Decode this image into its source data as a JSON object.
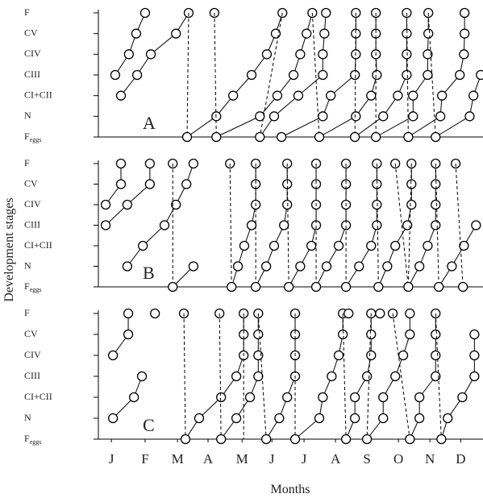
{
  "x_label": "Months",
  "y_label": "Development stages",
  "chart_data": [
    {
      "type": "line",
      "annotation": "A",
      "xlim": [
        0,
        12.1
      ],
      "ylim": [
        0,
        6
      ],
      "y_categories": [
        {
          "text": "F",
          "sub": "eggs"
        },
        "N",
        "CI+CII",
        "CIII",
        "CIV",
        "CV",
        "F"
      ],
      "series": [
        {
          "style": "solid",
          "x": [
            0.53,
            0.96,
            1.19,
            1.47
          ],
          "y": [
            3,
            4,
            5,
            6
          ]
        },
        {
          "style": "solid",
          "x": [
            0.71,
            1.22,
            1.65,
            2.44,
            2.84
          ],
          "y": [
            2,
            3,
            4,
            5,
            6
          ]
        },
        {
          "style": "dashed",
          "x": [
            2.84,
            2.79
          ],
          "y": [
            6,
            0
          ]
        },
        {
          "style": "solid",
          "x": [
            2.79,
            3.71,
            4.24,
            4.82,
            5.3,
            5.58,
            5.79
          ],
          "y": [
            0,
            1,
            2,
            3,
            4,
            5,
            6
          ]
        },
        {
          "style": "solid",
          "x": [
            3.65
          ],
          "y": [
            6
          ]
        },
        {
          "style": "dashed",
          "x": [
            3.65,
            3.71
          ],
          "y": [
            6,
            0
          ]
        },
        {
          "style": "solid",
          "x": [
            3.71,
            5.08,
            5.63,
            6.14,
            6.35,
            6.55,
            6.73
          ],
          "y": [
            0,
            1,
            2,
            3,
            4,
            5,
            6
          ]
        },
        {
          "style": "dashed",
          "x": [
            5.79,
            5.08
          ],
          "y": [
            6,
            0
          ]
        },
        {
          "style": "solid",
          "x": [
            5.08,
            5.53,
            6.29,
            7.06,
            7.06,
            7.11,
            7.16
          ],
          "y": [
            0,
            1,
            2,
            3,
            4,
            5,
            6
          ]
        },
        {
          "style": "dashed",
          "x": [
            6.73,
            6.95
          ],
          "y": [
            6,
            0
          ]
        },
        {
          "style": "solid",
          "x": [
            5.76,
            7.06,
            7.31,
            8.07,
            8.1,
            8.1,
            8.1
          ],
          "y": [
            0,
            1,
            2,
            3,
            4,
            5,
            6
          ]
        },
        {
          "style": "solid",
          "x": [
            6.95,
            8.1,
            8.58,
            8.76,
            8.73,
            8.73,
            8.73
          ],
          "y": [
            0,
            1,
            2,
            3,
            4,
            5,
            6
          ]
        },
        {
          "style": "dashed",
          "x": [
            8.1,
            8.07
          ],
          "y": [
            6,
            0
          ]
        },
        {
          "style": "solid",
          "x": [
            8.07,
            8.96,
            9.42,
            9.7,
            9.7,
            9.7,
            9.7
          ],
          "y": [
            0,
            1,
            2,
            3,
            4,
            5,
            6
          ]
        },
        {
          "style": "dashed",
          "x": [
            8.73,
            8.73
          ],
          "y": [
            6,
            0
          ]
        },
        {
          "style": "solid",
          "x": [
            8.73,
            9.9,
            9.9,
            10.36,
            10.36,
            10.38,
            10.38
          ],
          "y": [
            0,
            1,
            2,
            3,
            4,
            5,
            6
          ]
        },
        {
          "style": "dashed",
          "x": [
            9.7,
            9.75
          ],
          "y": [
            6,
            0
          ]
        },
        {
          "style": "solid",
          "x": [
            9.75,
            10.76,
            10.81,
            11.37,
            11.5,
            11.52,
            11.52
          ],
          "y": [
            0,
            1,
            2,
            3,
            4,
            5,
            6
          ]
        },
        {
          "style": "dashed",
          "x": [
            10.38,
            10.61
          ],
          "y": [
            6,
            0
          ]
        },
        {
          "style": "solid",
          "x": [
            10.61,
            11.68,
            11.8,
            12.03
          ],
          "y": [
            0,
            1,
            2,
            3
          ]
        }
      ]
    },
    {
      "type": "line",
      "annotation": "B",
      "xlim": [
        0,
        12.1
      ],
      "ylim": [
        0,
        6
      ],
      "y_categories": [
        {
          "text": "F",
          "sub": "eggs"
        },
        "N",
        "CI+CII",
        "CIII",
        "CIV",
        "CV",
        "F"
      ],
      "series": [
        {
          "style": "solid",
          "x": [
            0.23,
            0.71,
            0.71
          ],
          "y": [
            4,
            5,
            6
          ]
        },
        {
          "style": "solid",
          "x": [
            0.23,
            0.91,
            1.62,
            1.62
          ],
          "y": [
            3,
            4,
            5,
            6
          ]
        },
        {
          "style": "solid",
          "x": [
            0.91,
            1.4,
            2.08,
            2.44,
            2.77,
            2.99
          ],
          "y": [
            1,
            2,
            3,
            4,
            5,
            6
          ]
        },
        {
          "style": "solid",
          "x": [
            2.34
          ],
          "y": [
            6
          ]
        },
        {
          "style": "dashed",
          "x": [
            2.34,
            2.34
          ],
          "y": [
            6,
            0
          ]
        },
        {
          "style": "solid",
          "x": [
            2.34,
            2.99
          ],
          "y": [
            0,
            1
          ]
        },
        {
          "style": "solid",
          "x": [
            4.14
          ],
          "y": [
            6
          ]
        },
        {
          "style": "dashed",
          "x": [
            4.14,
            4.19
          ],
          "y": [
            6,
            0
          ]
        },
        {
          "style": "solid",
          "x": [
            4.19,
            4.39,
            4.59,
            4.82,
            4.95,
            4.95,
            4.95
          ],
          "y": [
            0,
            1,
            2,
            3,
            4,
            5,
            6
          ]
        },
        {
          "style": "dashed",
          "x": [
            4.95,
            4.95
          ],
          "y": [
            6,
            0
          ]
        },
        {
          "style": "solid",
          "x": [
            4.95,
            5.28,
            5.53,
            5.84,
            5.94,
            5.94,
            5.94
          ],
          "y": [
            0,
            1,
            2,
            3,
            4,
            5,
            6
          ]
        },
        {
          "style": "dashed",
          "x": [
            5.94,
            5.99
          ],
          "y": [
            6,
            0
          ]
        },
        {
          "style": "solid",
          "x": [
            5.99,
            6.35,
            6.7,
            6.85,
            6.85,
            6.85,
            6.85
          ],
          "y": [
            0,
            1,
            2,
            3,
            4,
            5,
            6
          ]
        },
        {
          "style": "dashed",
          "x": [
            6.85,
            6.85
          ],
          "y": [
            6,
            0
          ]
        },
        {
          "style": "solid",
          "x": [
            6.85,
            7.18,
            7.56,
            7.79,
            7.79,
            7.79,
            7.79
          ],
          "y": [
            0,
            1,
            2,
            3,
            4,
            5,
            6
          ]
        },
        {
          "style": "dashed",
          "x": [
            7.79,
            7.79
          ],
          "y": [
            6,
            0
          ]
        },
        {
          "style": "solid",
          "x": [
            7.79,
            8.2,
            8.58,
            8.76,
            8.76,
            8.76,
            8.76
          ],
          "y": [
            0,
            1,
            2,
            3,
            4,
            5,
            6
          ]
        },
        {
          "style": "dashed",
          "x": [
            8.76,
            8.81
          ],
          "y": [
            6,
            0
          ]
        },
        {
          "style": "solid",
          "x": [
            8.81,
            9.09,
            9.34,
            9.72,
            9.85,
            9.85,
            9.85
          ],
          "y": [
            0,
            1,
            2,
            3,
            4,
            5,
            6
          ]
        },
        {
          "style": "solid",
          "x": [
            9.34
          ],
          "y": [
            6
          ]
        },
        {
          "style": "dashed",
          "x": [
            9.34,
            9.75
          ],
          "y": [
            6,
            0
          ]
        },
        {
          "style": "dashed",
          "x": [
            9.85,
            9.75
          ],
          "y": [
            6,
            0
          ]
        },
        {
          "style": "solid",
          "x": [
            9.75,
            10.1,
            10.36,
            10.61,
            10.61,
            10.61,
            10.61
          ],
          "y": [
            0,
            1,
            2,
            3,
            4,
            5,
            6
          ]
        },
        {
          "style": "dashed",
          "x": [
            10.61,
            10.71
          ],
          "y": [
            6,
            0
          ]
        },
        {
          "style": "solid",
          "x": [
            10.71,
            11.12,
            11.5,
            11.88
          ],
          "y": [
            0,
            1,
            2,
            3
          ]
        },
        {
          "style": "solid",
          "x": [
            11.24
          ],
          "y": [
            6
          ]
        },
        {
          "style": "dashed",
          "x": [
            11.24,
            11.47
          ],
          "y": [
            6,
            0
          ]
        },
        {
          "style": "solid",
          "x": [
            11.47
          ],
          "y": [
            0
          ]
        }
      ]
    },
    {
      "type": "line",
      "annotation": "C",
      "xlim": [
        0,
        12.1
      ],
      "ylim": [
        0,
        6
      ],
      "y_categories": [
        {
          "text": "F",
          "sub": "eggs"
        },
        "N",
        "CI+CII",
        "CIII",
        "CIV",
        "CV",
        "F"
      ],
      "xticks": [
        {
          "value": 0.41,
          "label": "J"
        },
        {
          "value": 1.47,
          "label": "F"
        },
        {
          "value": 2.49,
          "label": "M"
        },
        {
          "value": 3.45,
          "label": "A"
        },
        {
          "value": 4.52,
          "label": "M"
        },
        {
          "value": 5.46,
          "label": "J"
        },
        {
          "value": 6.47,
          "label": "J"
        },
        {
          "value": 7.46,
          "label": "A"
        },
        {
          "value": 8.45,
          "label": "S"
        },
        {
          "value": 9.44,
          "label": "O"
        },
        {
          "value": 10.43,
          "label": "N"
        },
        {
          "value": 11.4,
          "label": "D"
        }
      ],
      "series": [
        {
          "style": "solid",
          "x": [
            0.46,
            0.94,
            0.94
          ],
          "y": [
            4,
            5,
            6
          ]
        },
        {
          "style": "solid",
          "x": [
            0.46,
            1.12,
            1.37
          ],
          "y": [
            1,
            2,
            3
          ]
        },
        {
          "style": "solid",
          "x": [
            1.78
          ],
          "y": [
            6
          ]
        },
        {
          "style": "solid",
          "x": [
            2.69
          ],
          "y": [
            6
          ]
        },
        {
          "style": "dashed",
          "x": [
            2.69,
            2.74
          ],
          "y": [
            6,
            0
          ]
        },
        {
          "style": "solid",
          "x": [
            2.74,
            3.17,
            3.86,
            4.34,
            4.57,
            4.57,
            4.57
          ],
          "y": [
            0,
            1,
            2,
            3,
            4,
            5,
            6
          ]
        },
        {
          "style": "solid",
          "x": [
            3.81
          ],
          "y": [
            6
          ]
        },
        {
          "style": "dashed",
          "x": [
            3.81,
            3.86
          ],
          "y": [
            6,
            0
          ]
        },
        {
          "style": "solid",
          "x": [
            3.86,
            4.34,
            4.77,
            5.03,
            5.03,
            5.03,
            5.03
          ],
          "y": [
            0,
            1,
            2,
            3,
            4,
            5,
            6
          ]
        },
        {
          "style": "dashed",
          "x": [
            4.57,
            4.57
          ],
          "y": [
            6,
            0
          ]
        },
        {
          "style": "dashed",
          "x": [
            5.03,
            5.28
          ],
          "y": [
            6,
            0
          ]
        },
        {
          "style": "solid",
          "x": [
            5.28,
            5.69,
            5.94,
            6.19,
            6.19,
            6.19,
            6.19
          ],
          "y": [
            0,
            1,
            2,
            3,
            4,
            5,
            6
          ]
        },
        {
          "style": "dashed",
          "x": [
            6.19,
            6.19
          ],
          "y": [
            6,
            0
          ]
        },
        {
          "style": "solid",
          "x": [
            6.19,
            6.95,
            7.06,
            7.34,
            7.56,
            7.69,
            7.69
          ],
          "y": [
            0,
            1,
            2,
            3,
            4,
            5,
            6
          ]
        },
        {
          "style": "dashed",
          "x": [
            7.69,
            7.79
          ],
          "y": [
            6,
            0
          ]
        },
        {
          "style": "solid",
          "x": [
            7.79,
            8.07,
            8.07,
            8.45,
            8.58,
            8.58,
            8.58
          ],
          "y": [
            0,
            1,
            2,
            3,
            4,
            5,
            6
          ]
        },
        {
          "style": "solid",
          "x": [
            7.87
          ],
          "y": [
            6
          ]
        },
        {
          "style": "dashed",
          "x": [
            8.58,
            8.45
          ],
          "y": [
            6,
            0
          ]
        },
        {
          "style": "solid",
          "x": [
            8.45,
            8.96,
            8.96,
            9.34,
            9.59,
            9.8,
            9.8
          ],
          "y": [
            0,
            1,
            2,
            3,
            4,
            5,
            6
          ]
        },
        {
          "style": "solid",
          "x": [
            8.86
          ],
          "y": [
            6
          ]
        },
        {
          "style": "solid",
          "x": [
            9.26
          ],
          "y": [
            6
          ]
        },
        {
          "style": "dashed",
          "x": [
            9.26,
            9.8
          ],
          "y": [
            6,
            0
          ]
        },
        {
          "style": "solid",
          "x": [
            9.8,
            10.1,
            10.1,
            10.61,
            10.61,
            10.61,
            10.61
          ],
          "y": [
            0,
            1,
            2,
            3,
            4,
            5,
            6
          ]
        },
        {
          "style": "dashed",
          "x": [
            10.61,
            10.79
          ],
          "y": [
            6,
            0
          ]
        },
        {
          "style": "solid",
          "x": [
            10.79,
            10.99,
            11.45,
            11.83,
            11.83,
            11.83
          ],
          "y": [
            0,
            1,
            2,
            3,
            4,
            5
          ]
        }
      ]
    }
  ]
}
